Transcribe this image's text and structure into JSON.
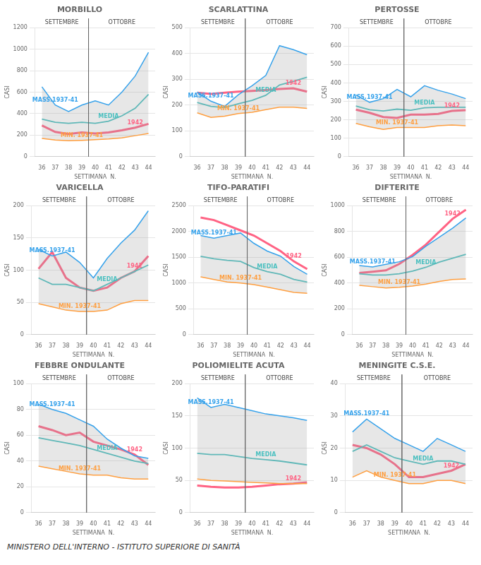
{
  "chart_data": [
    {
      "type": "line",
      "title": "MORBILLO",
      "x_label": "SETTIMANA  N.",
      "y_label": "CASI",
      "x": [
        36,
        37,
        38,
        39,
        40,
        41,
        42,
        43,
        44
      ],
      "xlim": [
        35.5,
        44.5
      ],
      "xticks": [
        36,
        37,
        38,
        39,
        40,
        41,
        42,
        43,
        44
      ],
      "ylim": [
        0,
        1200
      ],
      "yticks": [
        0,
        200,
        400,
        600,
        800,
        1000,
        1200
      ],
      "grid": "y",
      "annotations": [
        {
          "text": "SETTEMBRE",
          "x": [
            35.5,
            39.5
          ]
        },
        {
          "text": "OTTOBRE",
          "x": [
            39.5,
            44.5
          ]
        }
      ],
      "series": [
        {
          "name": "MASS.1937-41",
          "values": [
            650,
            480,
            420,
            480,
            520,
            480,
            600,
            750,
            970
          ]
        },
        {
          "name": "MIN. 1937-41",
          "values": [
            170,
            155,
            148,
            152,
            158,
            165,
            175,
            195,
            215
          ]
        },
        {
          "name": "MEDIA",
          "values": [
            350,
            320,
            310,
            320,
            310,
            330,
            380,
            450,
            580
          ]
        },
        {
          "name": "1942",
          "values": [
            290,
            230,
            210,
            225,
            215,
            225,
            245,
            270,
            305
          ]
        }
      ]
    },
    {
      "type": "line",
      "title": "SCARLATTINA",
      "x_label": "SETTIMANA  N.",
      "y_label": "CASI",
      "x": [
        36,
        37,
        38,
        39,
        40,
        41,
        42,
        43,
        44
      ],
      "xlim": [
        35.5,
        44.5
      ],
      "xticks": [
        36,
        37,
        38,
        39,
        40,
        41,
        42,
        43,
        44
      ],
      "ylim": [
        0,
        500
      ],
      "yticks": [
        0,
        100,
        200,
        300,
        400,
        500
      ],
      "grid": "y",
      "annotations": [
        {
          "text": "SETTEMBRE",
          "x": [
            35.5,
            39.5
          ]
        },
        {
          "text": "OTTOBRE",
          "x": [
            39.5,
            44.5
          ]
        }
      ],
      "series": [
        {
          "name": "MASS.1937-41",
          "values": [
            250,
            215,
            195,
            240,
            275,
            315,
            430,
            415,
            395
          ]
        },
        {
          "name": "MIN. 1937-41",
          "values": [
            170,
            152,
            157,
            167,
            172,
            182,
            192,
            192,
            187
          ]
        },
        {
          "name": "MEDIA",
          "values": [
            210,
            195,
            190,
            205,
            218,
            238,
            278,
            292,
            308
          ]
        },
        {
          "name": "1942",
          "values": [
            248,
            243,
            248,
            252,
            255,
            258,
            262,
            265,
            252
          ]
        }
      ]
    },
    {
      "type": "line",
      "title": "PERTOSSE",
      "x_label": "SETTIMANA  N.",
      "y_label": "CASI",
      "x": [
        36,
        37,
        38,
        39,
        40,
        41,
        42,
        43,
        44
      ],
      "xlim": [
        35.5,
        44.5
      ],
      "xticks": [
        36,
        37,
        38,
        39,
        40,
        41,
        42,
        43,
        44
      ],
      "ylim": [
        0,
        700
      ],
      "yticks": [
        0,
        100,
        200,
        300,
        400,
        500,
        600,
        700
      ],
      "grid": "y",
      "annotations": [
        {
          "text": "SETTEMBRE",
          "x": [
            35.5,
            39.5
          ]
        },
        {
          "text": "OTTOBRE",
          "x": [
            39.5,
            44.5
          ]
        }
      ],
      "series": [
        {
          "name": "MASS.1937-41",
          "values": [
            335,
            295,
            315,
            365,
            325,
            385,
            360,
            340,
            315
          ]
        },
        {
          "name": "MIN. 1937-41",
          "values": [
            180,
            162,
            148,
            158,
            158,
            158,
            168,
            172,
            168
          ]
        },
        {
          "name": "MEDIA",
          "values": [
            275,
            255,
            248,
            258,
            252,
            265,
            268,
            268,
            268
          ]
        },
        {
          "name": "1942",
          "values": [
            255,
            238,
            215,
            210,
            228,
            228,
            232,
            248,
            252
          ]
        }
      ]
    },
    {
      "type": "line",
      "title": "VARICELLA",
      "x_label": "SETTIMANA  N.",
      "y_label": "CASI",
      "x": [
        36,
        37,
        38,
        39,
        40,
        41,
        42,
        43,
        44
      ],
      "xlim": [
        35.5,
        44.5
      ],
      "xticks": [
        36,
        37,
        38,
        39,
        40,
        41,
        42,
        43,
        44
      ],
      "ylim": [
        0,
        200
      ],
      "yticks": [
        0,
        50,
        100,
        150,
        200
      ],
      "grid": "y",
      "annotations": [
        {
          "text": "SETTEMBRE",
          "x": [
            35.5,
            39.5
          ]
        },
        {
          "text": "OTTOBRE",
          "x": [
            39.5,
            44.5
          ]
        }
      ],
      "series": [
        {
          "name": "MASS.1937-41",
          "values": [
            132,
            122,
            128,
            112,
            88,
            118,
            142,
            162,
            192
          ]
        },
        {
          "name": "MIN. 1937-41",
          "values": [
            48,
            43,
            38,
            36,
            36,
            38,
            48,
            53,
            53
          ]
        },
        {
          "name": "MEDIA",
          "values": [
            88,
            78,
            78,
            73,
            68,
            78,
            88,
            98,
            108
          ]
        },
        {
          "name": "1942",
          "values": [
            102,
            128,
            88,
            73,
            68,
            73,
            88,
            98,
            122
          ]
        }
      ]
    },
    {
      "type": "line",
      "title": "TIFO-PARATIFI",
      "x_label": "SETTIMANA  N.",
      "y_label": "CASI",
      "x": [
        36,
        37,
        38,
        39,
        40,
        41,
        42,
        43,
        44
      ],
      "xlim": [
        35.5,
        44.5
      ],
      "xticks": [
        36,
        37,
        38,
        39,
        40,
        41,
        42,
        43,
        44
      ],
      "ylim": [
        0,
        2500
      ],
      "yticks": [
        0,
        500,
        1000,
        1500,
        2000,
        2500
      ],
      "grid": "y",
      "annotations": [
        {
          "text": "SETTEMBRE",
          "x": [
            35.5,
            39.5
          ]
        },
        {
          "text": "OTTOBRE",
          "x": [
            39.5,
            44.5
          ]
        }
      ],
      "series": [
        {
          "name": "MASS.1937-41",
          "values": [
            1920,
            1870,
            1920,
            1970,
            1770,
            1620,
            1520,
            1320,
            1170
          ]
        },
        {
          "name": "MIN. 1937-41",
          "values": [
            1120,
            1070,
            1020,
            1000,
            970,
            920,
            870,
            820,
            800
          ]
        },
        {
          "name": "MEDIA",
          "values": [
            1520,
            1470,
            1440,
            1420,
            1300,
            1220,
            1170,
            1070,
            1020
          ]
        },
        {
          "name": "1942",
          "values": [
            2270,
            2220,
            2120,
            2020,
            1920,
            1770,
            1620,
            1420,
            1270
          ]
        }
      ]
    },
    {
      "type": "line",
      "title": "DIFTERITE",
      "x_label": "SETTIMANA  N.",
      "y_label": "CASI",
      "x": [
        36,
        37,
        38,
        39,
        40,
        41,
        42,
        43,
        44
      ],
      "xlim": [
        35.5,
        44.5
      ],
      "xticks": [
        36,
        37,
        38,
        39,
        40,
        41,
        42,
        43,
        44
      ],
      "ylim": [
        0,
        1000
      ],
      "yticks": [
        0,
        200,
        400,
        600,
        800,
        1000
      ],
      "grid": "y",
      "annotations": [
        {
          "text": "SETTEMBRE",
          "x": [
            35.5,
            39.5
          ]
        },
        {
          "text": "OTTOBRE",
          "x": [
            39.5,
            44.5
          ]
        }
      ],
      "series": [
        {
          "name": "MASS.1937-41",
          "values": [
            535,
            525,
            545,
            565,
            605,
            685,
            755,
            825,
            905
          ]
        },
        {
          "name": "MIN. 1937-41",
          "values": [
            382,
            372,
            362,
            367,
            377,
            392,
            412,
            427,
            432
          ]
        },
        {
          "name": "MEDIA",
          "values": [
            472,
            462,
            462,
            472,
            492,
            522,
            562,
            592,
            622
          ]
        },
        {
          "name": "1942",
          "values": [
            478,
            488,
            498,
            548,
            618,
            698,
            798,
            898,
            968
          ]
        }
      ]
    },
    {
      "type": "line",
      "title": "FEBBRE ONDULANTE",
      "x_label": "SETTIMANA  N.",
      "y_label": "CASI",
      "x": [
        36,
        37,
        38,
        39,
        40,
        41,
        42,
        43,
        44
      ],
      "xlim": [
        35.5,
        44.5
      ],
      "xticks": [
        36,
        37,
        38,
        39,
        40,
        41,
        42,
        43,
        44
      ],
      "ylim": [
        0,
        100
      ],
      "yticks": [
        0,
        20,
        40,
        60,
        80,
        100
      ],
      "grid": "y",
      "annotations": [
        {
          "text": "SETTEMBRE",
          "x": [
            35.5,
            39.5
          ]
        },
        {
          "text": "OTTOBRE",
          "x": [
            39.5,
            44.5
          ]
        }
      ],
      "series": [
        {
          "name": "MASS.1937-41",
          "values": [
            84,
            80,
            77,
            72,
            67,
            57,
            50,
            44,
            42
          ]
        },
        {
          "name": "MIN. 1937-41",
          "values": [
            36,
            34,
            32,
            30,
            29,
            29,
            27,
            26,
            26
          ]
        },
        {
          "name": "MEDIA",
          "values": [
            58,
            56,
            54,
            52,
            49,
            46,
            43,
            40,
            38
          ]
        },
        {
          "name": "1942",
          "values": [
            67,
            64,
            60,
            62,
            55,
            52,
            49,
            45,
            37
          ]
        }
      ]
    },
    {
      "type": "line",
      "title": "POLIOMIELITE ACUTA",
      "x_label": "SETTIMANA  N.",
      "y_label": "CASI",
      "x": [
        36,
        37,
        38,
        39,
        40,
        41,
        42,
        43,
        44
      ],
      "xlim": [
        35.5,
        44.5
      ],
      "xticks": [
        36,
        37,
        38,
        39,
        40,
        41,
        42,
        43,
        44
      ],
      "ylim": [
        0,
        200
      ],
      "yticks": [
        0,
        50,
        100,
        150,
        200
      ],
      "grid": "y",
      "annotations": [
        {
          "text": "SETTEMBRE",
          "x": [
            35.5,
            39.5
          ]
        },
        {
          "text": "OTTOBRE",
          "x": [
            39.5,
            44.5
          ]
        }
      ],
      "series": [
        {
          "name": "MASS.1937-41",
          "values": [
            178,
            163,
            168,
            163,
            158,
            153,
            150,
            147,
            143
          ]
        },
        {
          "values": [
            52,
            50,
            49,
            48,
            47,
            46,
            45,
            45,
            45
          ]
        },
        {
          "name": "MEDIA",
          "values": [
            92,
            90,
            90,
            87,
            84,
            82,
            80,
            77,
            74
          ]
        },
        {
          "name": "1942",
          "values": [
            42,
            40,
            39,
            39,
            40,
            42,
            44,
            45,
            47
          ]
        }
      ]
    },
    {
      "type": "line",
      "title": "MENINGITE C.S.E.",
      "x_label": "SETTIMANA  N.",
      "y_label": "CASI",
      "x": [
        36,
        37,
        38,
        39,
        40,
        41,
        42,
        43,
        44
      ],
      "xlim": [
        35.5,
        44.5
      ],
      "xticks": [
        36,
        37,
        38,
        39,
        40,
        41,
        42,
        43,
        44
      ],
      "ylim": [
        0,
        40
      ],
      "yticks": [
        0,
        10,
        20,
        30,
        40
      ],
      "grid": "y",
      "annotations": [
        {
          "text": "SETTEMBRE",
          "x": [
            35.5,
            39.5
          ]
        },
        {
          "text": "OTTOBRE",
          "x": [
            39.5,
            44.5
          ]
        }
      ],
      "series": [
        {
          "name": "MASS.1937-41",
          "values": [
            25,
            29,
            26,
            23,
            21,
            19,
            23,
            21,
            19
          ]
        },
        {
          "name": "MIN. 1937-41",
          "values": [
            11,
            13,
            11,
            10,
            9,
            9,
            10,
            10,
            9
          ]
        },
        {
          "name": "MEDIA",
          "values": [
            19,
            21,
            19,
            17,
            16,
            15,
            16,
            16,
            15
          ]
        },
        {
          "name": "1942",
          "values": [
            21,
            20,
            18,
            15,
            11,
            11,
            12,
            13,
            15
          ]
        }
      ]
    }
  ],
  "footer": "MINISTERO DELL'INTERNO  -  ISTITUTO SUPERIORE DI SANITÀ"
}
